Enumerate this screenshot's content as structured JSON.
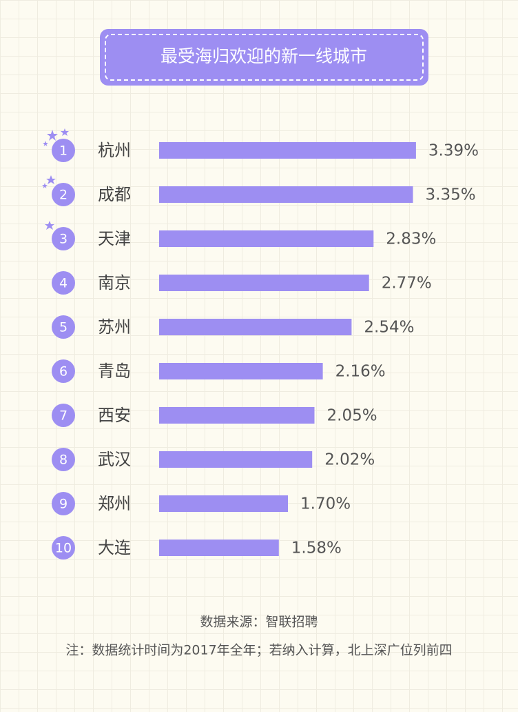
{
  "chart_data": {
    "type": "bar",
    "orientation": "horizontal",
    "title": "最受海归欢迎的新一线城市",
    "ranks": [
      1,
      2,
      3,
      4,
      5,
      6,
      7,
      8,
      9,
      10
    ],
    "categories": [
      "杭州",
      "成都",
      "天津",
      "南京",
      "苏州",
      "青岛",
      "西安",
      "武汉",
      "郑州",
      "大连"
    ],
    "values": [
      3.39,
      3.35,
      2.83,
      2.77,
      2.54,
      2.16,
      2.05,
      2.02,
      1.7,
      1.58
    ],
    "value_labels": [
      "3.39%",
      "3.35%",
      "2.83%",
      "2.77%",
      "2.54%",
      "2.16%",
      "2.05%",
      "2.02%",
      "1.70%",
      "1.58%"
    ],
    "color": "#9d8ef2",
    "source": "数据来源：智联招聘",
    "note": "注：数据统计时间为2017年全年；若纳入计算，北上深广位列前四"
  }
}
